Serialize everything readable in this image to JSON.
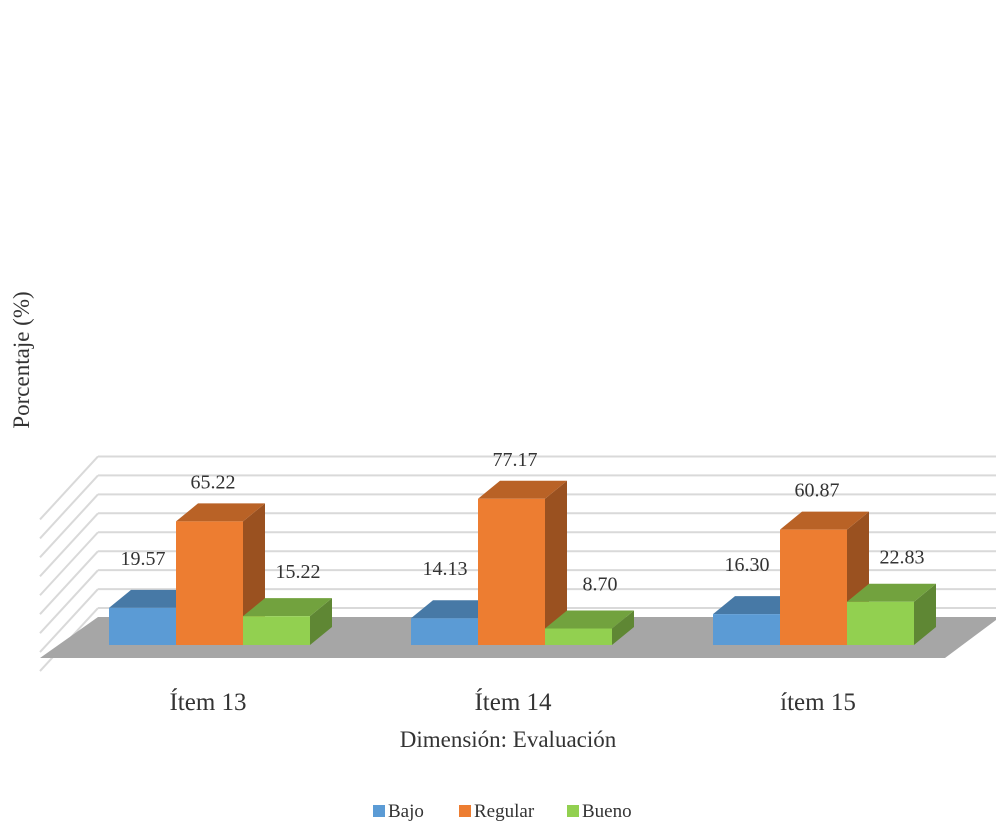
{
  "chart_data": {
    "type": "bar",
    "title": "",
    "xlabel": "Dimensión: Evaluación",
    "ylabel": "Porcentaje (%)",
    "categories": [
      "Ítem 13",
      "Ítem 14",
      "ítem 15"
    ],
    "series": [
      {
        "name": "Bajo",
        "values": [
          19.57,
          14.13,
          16.3
        ],
        "labels": [
          "19.57",
          "14.13",
          "16.30"
        ],
        "color": "#5B9BD5"
      },
      {
        "name": "Regular",
        "values": [
          65.22,
          77.17,
          60.87
        ],
        "labels": [
          "65.22",
          "77.17",
          "60.87"
        ],
        "color": "#ED7D31"
      },
      {
        "name": "Bueno",
        "values": [
          15.22,
          8.7,
          22.83
        ],
        "labels": [
          "15.22",
          "8.70",
          "22.83"
        ],
        "color": "#92D050"
      }
    ],
    "ylim": [
      0,
      90
    ],
    "grid": true,
    "three_d": true,
    "legend_position": "bottom"
  }
}
